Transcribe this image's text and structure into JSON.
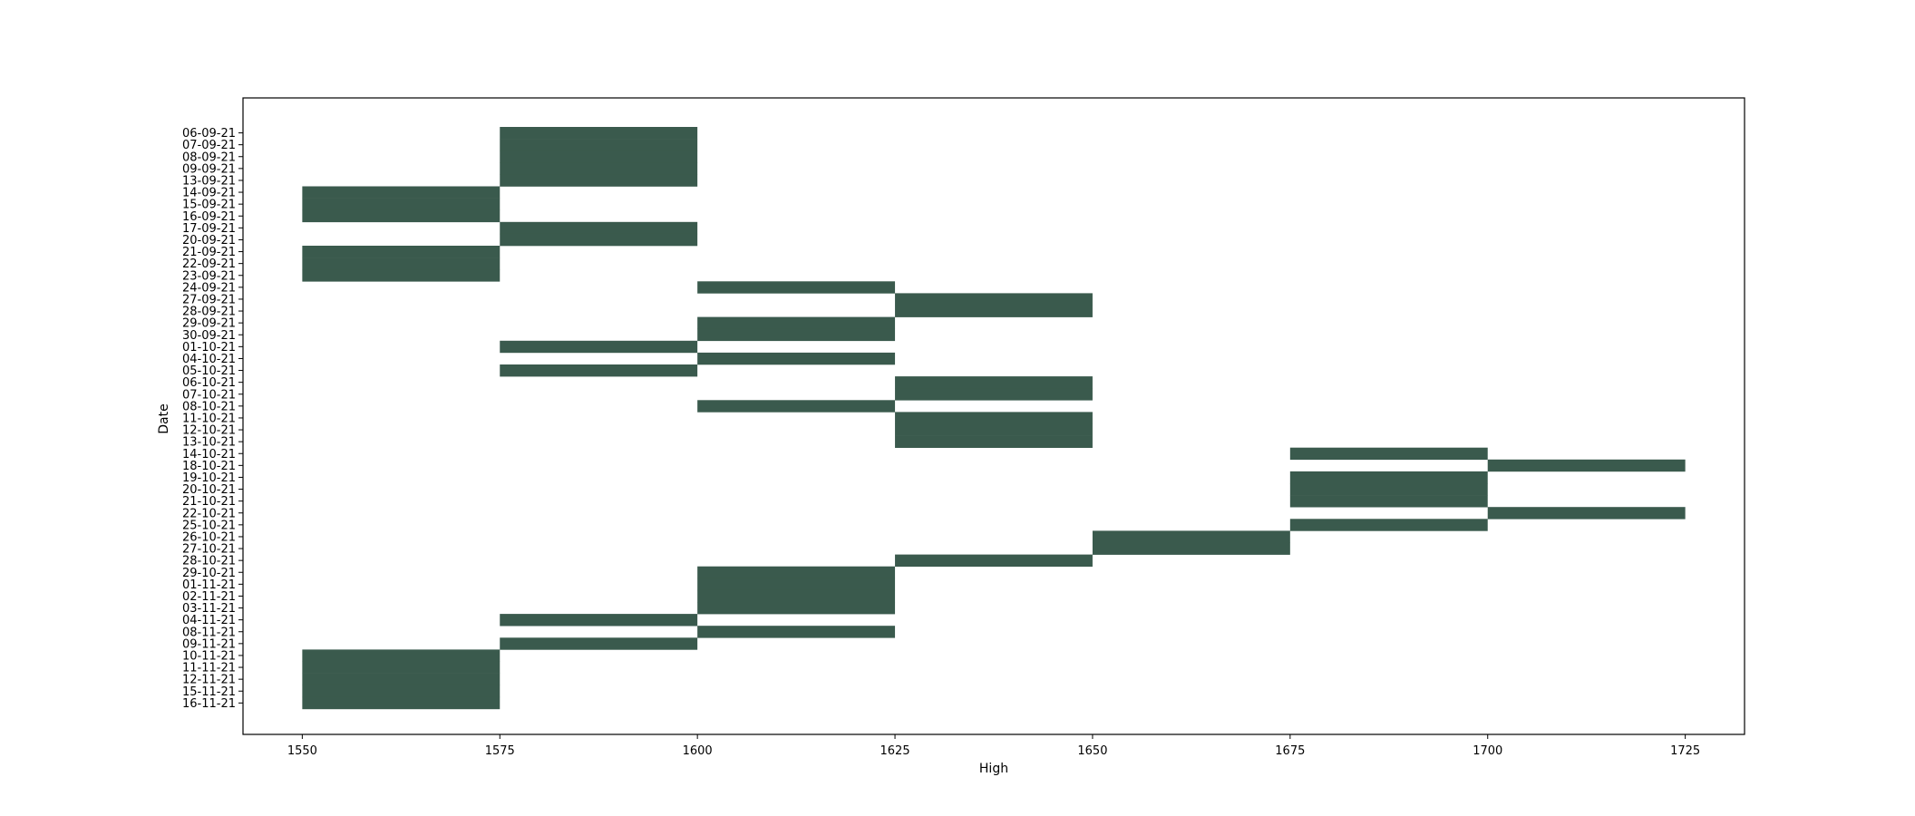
{
  "chart_data": {
    "type": "heatmap",
    "title": "",
    "xlabel": "High",
    "ylabel": "Date",
    "xlim": [
      1542.5,
      1732.5
    ],
    "x_ticks": [
      1550,
      1575,
      1600,
      1625,
      1650,
      1675,
      1700,
      1725
    ],
    "bin_width": 25,
    "grid": false,
    "legend": "none",
    "colors": {
      "cell": "#3a5a4d",
      "axis": "#000000",
      "background": "#ffffff"
    },
    "dates": [
      "06-09-21",
      "07-09-21",
      "08-09-21",
      "09-09-21",
      "13-09-21",
      "14-09-21",
      "15-09-21",
      "16-09-21",
      "17-09-21",
      "20-09-21",
      "21-09-21",
      "22-09-21",
      "23-09-21",
      "24-09-21",
      "27-09-21",
      "28-09-21",
      "29-09-21",
      "30-09-21",
      "01-10-21",
      "04-10-21",
      "05-10-21",
      "06-10-21",
      "07-10-21",
      "08-10-21",
      "11-10-21",
      "12-10-21",
      "13-10-21",
      "14-10-21",
      "18-10-21",
      "19-10-21",
      "20-10-21",
      "21-10-21",
      "22-10-21",
      "25-10-21",
      "26-10-21",
      "27-10-21",
      "28-10-21",
      "29-10-21",
      "01-11-21",
      "02-11-21",
      "03-11-21",
      "04-11-21",
      "08-11-21",
      "09-11-21",
      "10-11-21",
      "11-11-21",
      "12-11-21",
      "15-11-21",
      "16-11-21"
    ],
    "values": [
      1575,
      1575,
      1575,
      1575,
      1575,
      1550,
      1550,
      1550,
      1575,
      1575,
      1550,
      1550,
      1550,
      1600,
      1625,
      1625,
      1600,
      1600,
      1575,
      1600,
      1575,
      1625,
      1625,
      1600,
      1625,
      1625,
      1625,
      1675,
      1700,
      1675,
      1675,
      1675,
      1700,
      1675,
      1650,
      1650,
      1625,
      1600,
      1600,
      1600,
      1600,
      1575,
      1600,
      1575,
      1550,
      1550,
      1550,
      1550,
      1550
    ]
  }
}
